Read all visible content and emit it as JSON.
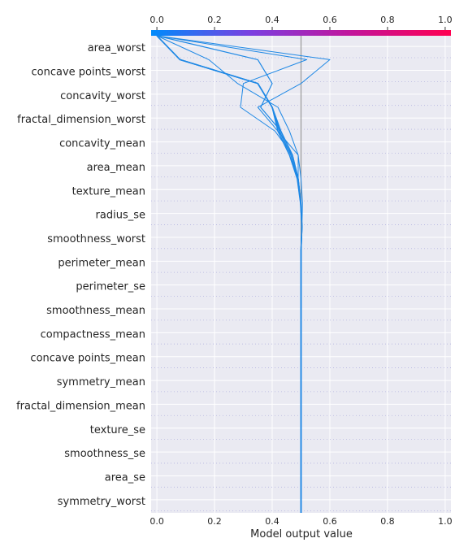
{
  "chart_data": {
    "type": "decision-plot",
    "title": "",
    "xlabel": "Model output value",
    "ylabel": "",
    "xlim": [
      -0.02,
      1.02
    ],
    "x_ticks": [
      "0.0",
      "0.2",
      "0.4",
      "0.6",
      "0.8",
      "1.0"
    ],
    "x_tick_values": [
      0.0,
      0.2,
      0.4,
      0.6,
      0.8,
      1.0
    ],
    "base_value": 0.5,
    "grid": true,
    "background_color": "#eaeaf2",
    "line_color": "#1e88e5",
    "colorbar": {
      "position": "top",
      "colors": [
        "#008bfb",
        "#7b3fe0",
        "#c2159b",
        "#ff0051"
      ],
      "ticks": [
        "0.0",
        "0.2",
        "0.4",
        "0.6",
        "0.8",
        "1.0"
      ]
    },
    "features": [
      "area_worst",
      "concave points_worst",
      "concavity_worst",
      "fractal_dimension_worst",
      "concavity_mean",
      "area_mean",
      "texture_mean",
      "radius_se",
      "smoothness_worst",
      "perimeter_mean",
      "perimeter_se",
      "smoothness_mean",
      "compactness_mean",
      "concave points_mean",
      "symmetry_mean",
      "fractal_dimension_mean",
      "texture_se",
      "smoothness_se",
      "area_se",
      "symmetry_worst"
    ],
    "series": [
      {
        "width": 1.5,
        "values": [
          0.5,
          0.5,
          0.5,
          0.5,
          0.5,
          0.5,
          0.5,
          0.5,
          0.5,
          0.5,
          0.5,
          0.5,
          0.503,
          0.499,
          0.49,
          0.47,
          0.43,
          0.4,
          0.35,
          0.08,
          0.0
        ]
      },
      {
        "width": 1.5,
        "values": [
          0.5,
          0.5,
          0.5,
          0.5,
          0.5,
          0.5,
          0.5,
          0.5,
          0.5,
          0.5,
          0.5,
          0.5,
          0.503,
          0.499,
          0.488,
          0.465,
          0.425,
          0.4,
          0.35,
          0.08,
          0.0
        ]
      },
      {
        "width": 1.5,
        "values": [
          0.5,
          0.5,
          0.5,
          0.5,
          0.5,
          0.5,
          0.5,
          0.5,
          0.5,
          0.5,
          0.5,
          0.5,
          0.503,
          0.498,
          0.487,
          0.46,
          0.42,
          0.4,
          0.35,
          0.08,
          0.0
        ]
      },
      {
        "width": 1.2,
        "values": [
          0.5,
          0.5,
          0.5,
          0.5,
          0.5,
          0.5,
          0.5,
          0.5,
          0.5,
          0.5,
          0.5,
          0.5,
          0.503,
          0.5,
          0.49,
          0.47,
          0.43,
          0.36,
          0.4,
          0.35,
          0.0
        ]
      },
      {
        "width": 1.0,
        "values": [
          0.5,
          0.5,
          0.5,
          0.5,
          0.5,
          0.5,
          0.5,
          0.5,
          0.5,
          0.5,
          0.5,
          0.5,
          0.503,
          0.505,
          0.5,
          0.49,
          0.46,
          0.42,
          0.28,
          0.18,
          0.0
        ]
      },
      {
        "width": 1.0,
        "values": [
          0.5,
          0.5,
          0.5,
          0.5,
          0.5,
          0.5,
          0.5,
          0.5,
          0.5,
          0.5,
          0.5,
          0.5,
          0.503,
          0.5,
          0.49,
          0.49,
          0.42,
          0.35,
          0.5,
          0.6,
          0.0
        ]
      },
      {
        "width": 1.0,
        "values": [
          0.5,
          0.5,
          0.5,
          0.5,
          0.5,
          0.5,
          0.5,
          0.5,
          0.5,
          0.5,
          0.5,
          0.5,
          0.503,
          0.5,
          0.49,
          0.47,
          0.41,
          0.29,
          0.3,
          0.52,
          0.0
        ]
      }
    ]
  }
}
